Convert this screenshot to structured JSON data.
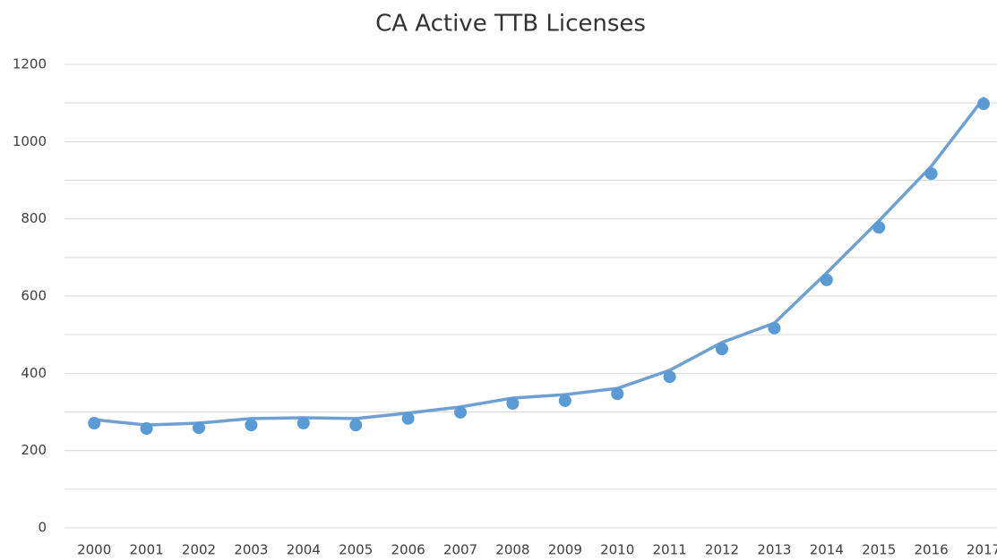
{
  "chart_data": {
    "type": "line",
    "title": "CA Active TTB Licenses",
    "categories": [
      "2000",
      "2001",
      "2002",
      "2003",
      "2004",
      "2005",
      "2006",
      "2007",
      "2008",
      "2009",
      "2010",
      "2011",
      "2012",
      "2013",
      "2014",
      "2015",
      "2016",
      "2017"
    ],
    "series": [
      {
        "color": "#6fa0d4",
        "markers": false,
        "values": [
          280,
          266,
          271,
          283,
          285,
          283,
          297,
          313,
          336,
          345,
          361,
          408,
          480,
          530,
          660,
          795,
          936,
          1112
        ]
      },
      {
        "color": "#5b9bd5",
        "markers": true,
        "line": false,
        "values": [
          271,
          257,
          259,
          266,
          271,
          266,
          283,
          299,
          322,
          329,
          347,
          391,
          463,
          517,
          642,
          778,
          917,
          1098
        ]
      }
    ],
    "ylim": [
      0,
      1200
    ],
    "yticks": [
      0,
      200,
      400,
      600,
      800,
      1000,
      1200
    ],
    "minor_gridlines": [
      100,
      300,
      500,
      700,
      900,
      1100
    ],
    "grid": true
  }
}
